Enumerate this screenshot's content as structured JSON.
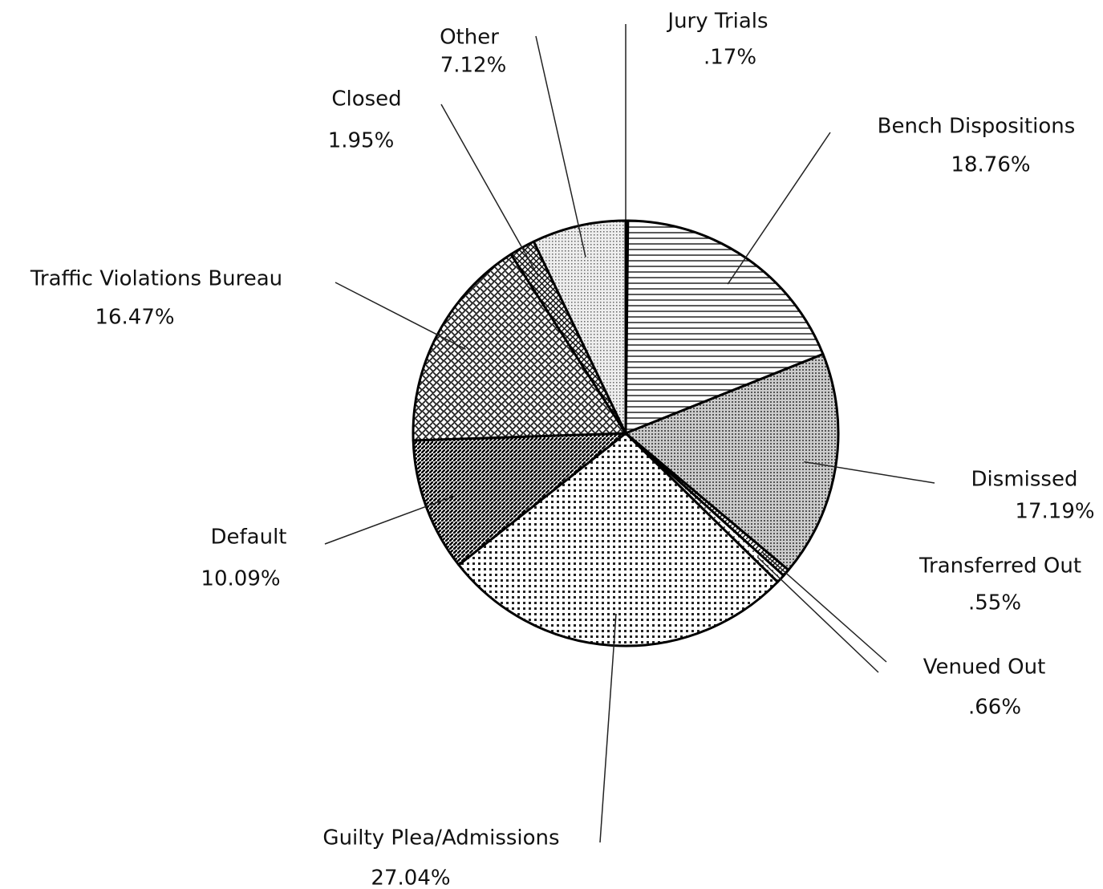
{
  "chart_data": {
    "type": "pie",
    "categories": [
      "Jury Trials",
      "Bench Dispositions",
      "Dismissed",
      "Transferred Out",
      "Venued Out",
      "Guilty Plea/Admissions",
      "Default",
      "Traffic Violations Bureau",
      "Closed",
      "Other"
    ],
    "values": [
      0.17,
      18.76,
      17.19,
      0.55,
      0.66,
      27.04,
      10.09,
      16.47,
      1.95,
      7.12
    ],
    "value_labels": [
      ".17%",
      "18.76%",
      "17.19%",
      ".55%",
      ".66%",
      "27.04%",
      "10.09%",
      "16.47%",
      "1.95%",
      "7.12%"
    ]
  }
}
